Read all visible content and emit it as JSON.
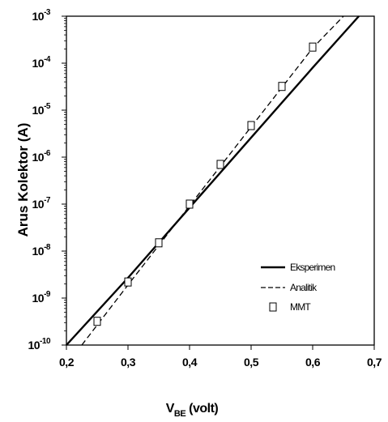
{
  "chart_data": {
    "type": "line",
    "y_scale": "log",
    "xlim": [
      0.2,
      0.7
    ],
    "ylim_exponents": [
      -10,
      -3
    ],
    "x_ticks": [
      "0,2",
      "0,3",
      "0,4",
      "0,5",
      "0,6",
      "0,7"
    ],
    "y_tick_mantissa": "10",
    "y_tick_exponents": [
      "-10",
      "-9",
      "-8",
      "-7",
      "-6",
      "-5",
      "-4",
      "-3"
    ],
    "ylabel": "Arus Kolektor (A)",
    "xlabel": {
      "main": "V",
      "subscript": "BE",
      "unit": " (volt)"
    },
    "grid": false,
    "legend_position": "bottom-right",
    "series": [
      {
        "name": "Eksperimen",
        "style": "solid",
        "x": [
          0.2,
          0.3,
          0.4,
          0.5,
          0.6,
          0.675
        ],
        "y": [
          1e-10,
          2.7e-09,
          8.4e-08,
          2.6e-06,
          8e-05,
          0.001
        ]
      },
      {
        "name": "Analitik",
        "style": "dashed",
        "x": [
          0.225,
          0.3,
          0.4,
          0.5,
          0.6,
          0.65
        ],
        "y": [
          1e-10,
          1.9e-09,
          9.2e-08,
          4.4e-06,
          0.00021,
          0.001
        ]
      },
      {
        "name": "MMT",
        "style": "markers",
        "x": [
          0.25,
          0.3,
          0.35,
          0.4,
          0.45,
          0.5,
          0.55,
          0.6
        ],
        "y": [
          3.2e-10,
          2.2e-09,
          1.5e-08,
          1e-07,
          7e-07,
          4.7e-06,
          3.2e-05,
          0.00022
        ]
      }
    ]
  }
}
